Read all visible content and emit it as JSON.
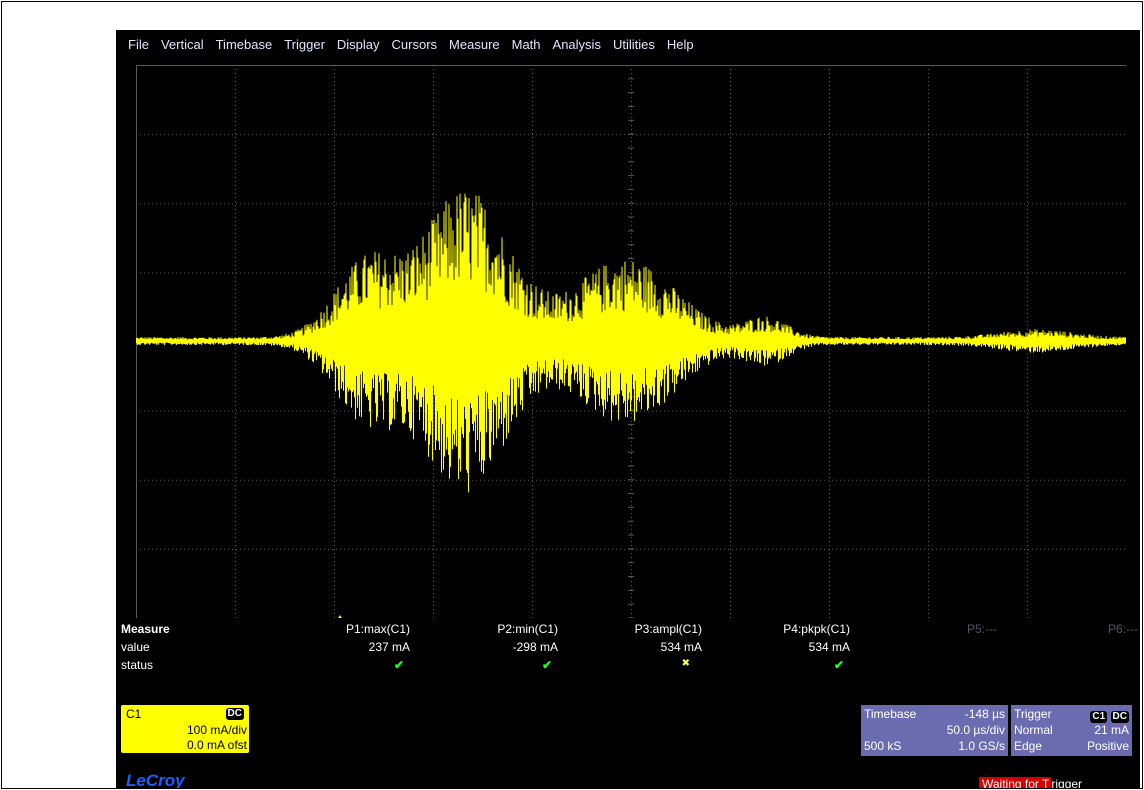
{
  "menu": [
    "File",
    "Vertical",
    "Timebase",
    "Trigger",
    "Display",
    "Cursors",
    "Measure",
    "Math",
    "Analysis",
    "Utilities",
    "Help"
  ],
  "channel_marker": "C1",
  "measure": {
    "title": "Measure",
    "row_value": "value",
    "row_status": "status",
    "params": [
      {
        "name": "P1:max(C1)",
        "value": "237 mA",
        "status": "✔"
      },
      {
        "name": "P2:min(C1)",
        "value": "-298 mA",
        "status": "✔"
      },
      {
        "name": "P3:ampl(C1)",
        "value": "534 mA",
        "status": "✖"
      },
      {
        "name": "P4:pkpk(C1)",
        "value": "534 mA",
        "status": "✔"
      },
      {
        "name": "P5:---",
        "value": "",
        "status": ""
      },
      {
        "name": "P6:---",
        "value": "",
        "status": ""
      }
    ]
  },
  "channel": {
    "label": "C1",
    "coupling": "DC",
    "scale": "100 mA/div",
    "offset": "0.0 mA ofst"
  },
  "timebase": {
    "title": "Timebase",
    "delay": "-148 µs",
    "div": "50.0 µs/div",
    "samples": "500 kS",
    "rate": "1.0 GS/s"
  },
  "trigger": {
    "title": "Trigger",
    "source_badge": "C1",
    "coupling_badge": "DC",
    "mode": "Normal",
    "level": "21 mA",
    "type": "Edge",
    "slope": "Positive"
  },
  "status": {
    "highlight": "Waiting for T",
    "rest": "rigger"
  },
  "logo": "LeCroy",
  "colors": {
    "trace": "#ffff00",
    "grid": "#5a5a5a",
    "panel": "#6b6bb0",
    "ok": "#22ff22"
  }
}
